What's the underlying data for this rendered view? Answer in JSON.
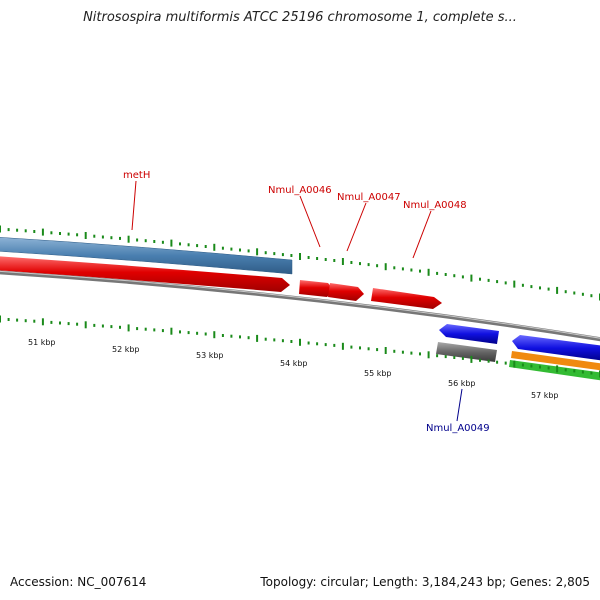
{
  "header": {
    "title": "Nitrosospira multiformis ATCC 25196 chromosome 1, complete s..."
  },
  "footer": {
    "accession": "Accession: NC_007614",
    "summary": "Topology: circular; Length: 3,184,243 bp; Genes: 2,805"
  },
  "colors": {
    "forward_gene": "#e00000",
    "reverse_gene": "#1010e0",
    "feature_blue": "#4a7fb0",
    "feature_gray": "#666666",
    "feature_orange": "#f08a10",
    "feature_green": "#33bb33",
    "tick": "#1a8a1a",
    "backbone": "#8a8a8a",
    "label_forward": "#cc0000",
    "label_reverse": "#00008b"
  },
  "scale": {
    "unit": "kbp",
    "labels": [
      "51 kbp",
      "52 kbp",
      "53 kbp",
      "54 kbp",
      "55 kbp",
      "56 kbp",
      "57 kbp"
    ]
  },
  "genes": [
    {
      "name": "metH",
      "strand": "forward",
      "color": "#e00000"
    },
    {
      "name": "Nmul_A0046",
      "strand": "forward",
      "color": "#e00000"
    },
    {
      "name": "Nmul_A0047",
      "strand": "forward",
      "color": "#e00000"
    },
    {
      "name": "Nmul_A0048",
      "strand": "forward",
      "color": "#e00000"
    },
    {
      "name": "Nmul_A0049",
      "strand": "reverse",
      "color": "#1010e0"
    }
  ]
}
